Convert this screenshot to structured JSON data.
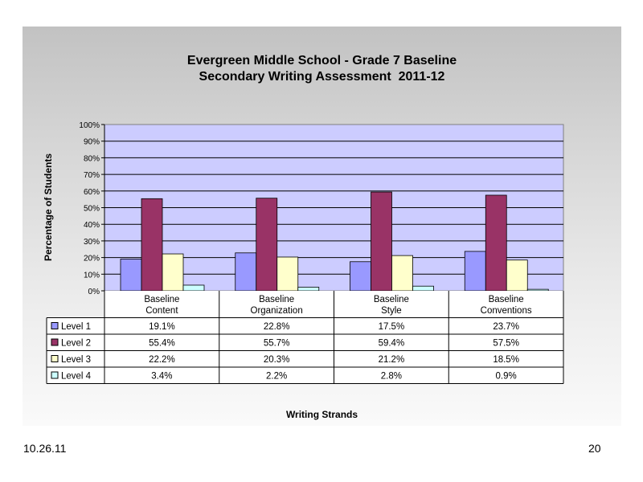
{
  "chart_data": {
    "type": "bar",
    "title_lines": [
      "Evergreen Middle School - Grade 7 Baseline",
      "Secondary Writing Assessment  2011-12"
    ],
    "xlabel": "Writing Strands",
    "ylabel": "Percentage of Students",
    "ylim": [
      0,
      100
    ],
    "y_ticks": [
      "0%",
      "10%",
      "20%",
      "30%",
      "40%",
      "50%",
      "60%",
      "70%",
      "80%",
      "90%",
      "100%"
    ],
    "grid": true,
    "legend": "data-table-left",
    "categories": [
      [
        "Baseline",
        "Content"
      ],
      [
        "Baseline",
        "Organization"
      ],
      [
        "Baseline",
        "Style"
      ],
      [
        "Baseline",
        "Conventions"
      ]
    ],
    "series": [
      {
        "name": "Level 1",
        "color": "#9999ff",
        "values": [
          19.1,
          22.8,
          17.5,
          23.7
        ],
        "labels": [
          "19.1%",
          "22.8%",
          "17.5%",
          "23.7%"
        ]
      },
      {
        "name": "Level 2",
        "color": "#993366",
        "values": [
          55.4,
          55.7,
          59.4,
          57.5
        ],
        "labels": [
          "55.4%",
          "55.7%",
          "59.4%",
          "57.5%"
        ]
      },
      {
        "name": "Level 3",
        "color": "#ffffcc",
        "values": [
          22.2,
          20.3,
          21.2,
          18.5
        ],
        "labels": [
          "22.2%",
          "20.3%",
          "21.2%",
          "18.5%"
        ]
      },
      {
        "name": "Level 4",
        "color": "#ccffff",
        "values": [
          3.4,
          2.2,
          2.8,
          0.9
        ],
        "labels": [
          "3.4%",
          "2.2%",
          "2.8%",
          "0.9%"
        ]
      }
    ],
    "plot_background": "#ccccff"
  },
  "footer": {
    "date": "10.26.11",
    "page": "20"
  }
}
